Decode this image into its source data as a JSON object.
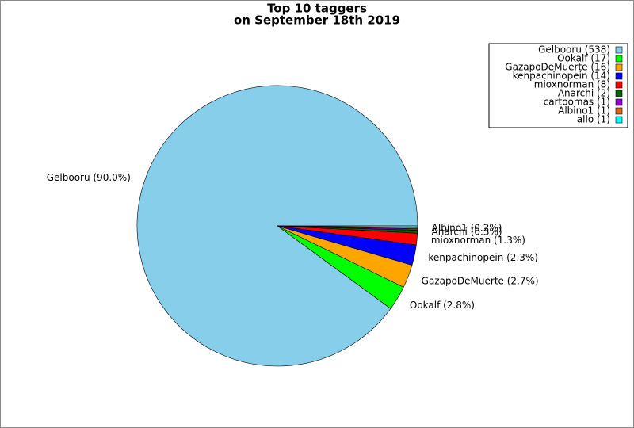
{
  "chart_data": {
    "type": "pie",
    "title": [
      "Top 10 taggers",
      "on September 18th 2019"
    ],
    "categories": [
      "Gelbooru (538)",
      "Ookalf (17)",
      "GazapoDeMuerte (16)",
      "kenpachinopein (14)",
      "mioxnorman (8)",
      "Anarchi (2)",
      "cartoomas (1)",
      "Albino1 (1)",
      "allo (1)"
    ],
    "values": [
      538,
      17,
      16,
      14,
      8,
      2,
      1,
      1,
      1
    ],
    "value_labels": [
      "Gelbooru (90.0%)",
      "Ookalf (2.8%)",
      "GazapoDeMuerte (2.7%)",
      "kenpachinopein (2.3%)",
      "mioxnorman (1.3%)",
      "Anarchi (0.3%)",
      null,
      "Albino1 (0.2%)",
      null
    ],
    "colors": [
      "#87ceeb",
      "#00ff00",
      "#ffa500",
      "#0000ff",
      "#ff0000",
      "#006400",
      "#9400d3",
      "#d2691e",
      "#00ffff"
    ],
    "legend": "upper right"
  }
}
